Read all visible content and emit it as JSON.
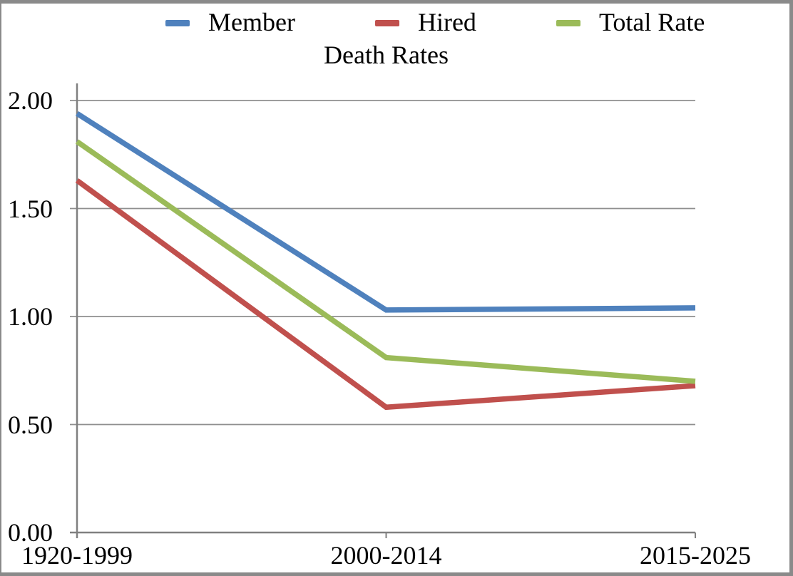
{
  "chart_data": {
    "type": "line",
    "title": "Death Rates",
    "categories": [
      "1920-1999",
      "2000-2014",
      "2015-2025"
    ],
    "series": [
      {
        "name": "Member",
        "color": "#4F81BD",
        "values": [
          1.94,
          1.03,
          1.04
        ]
      },
      {
        "name": "Hired",
        "color": "#C0504D",
        "values": [
          1.63,
          0.58,
          0.68
        ]
      },
      {
        "name": "Total Rate",
        "color": "#9BBB59",
        "values": [
          1.81,
          0.81,
          0.7
        ]
      }
    ],
    "xlabel": "",
    "ylabel": "",
    "ylim": [
      0,
      2.0
    ],
    "y_ticks": [
      0,
      0.5,
      1.0,
      1.5,
      2.0
    ],
    "y_tick_labels": [
      "0.00",
      "0.50",
      "1.00",
      "1.50",
      "2.00"
    ],
    "grid": true,
    "legend_position": "top",
    "colors": {
      "grid": "#8f8f8f",
      "axis": "#808080",
      "frame_border": "#8a8a8a",
      "text": "#000000",
      "background": "#ffffff"
    }
  }
}
